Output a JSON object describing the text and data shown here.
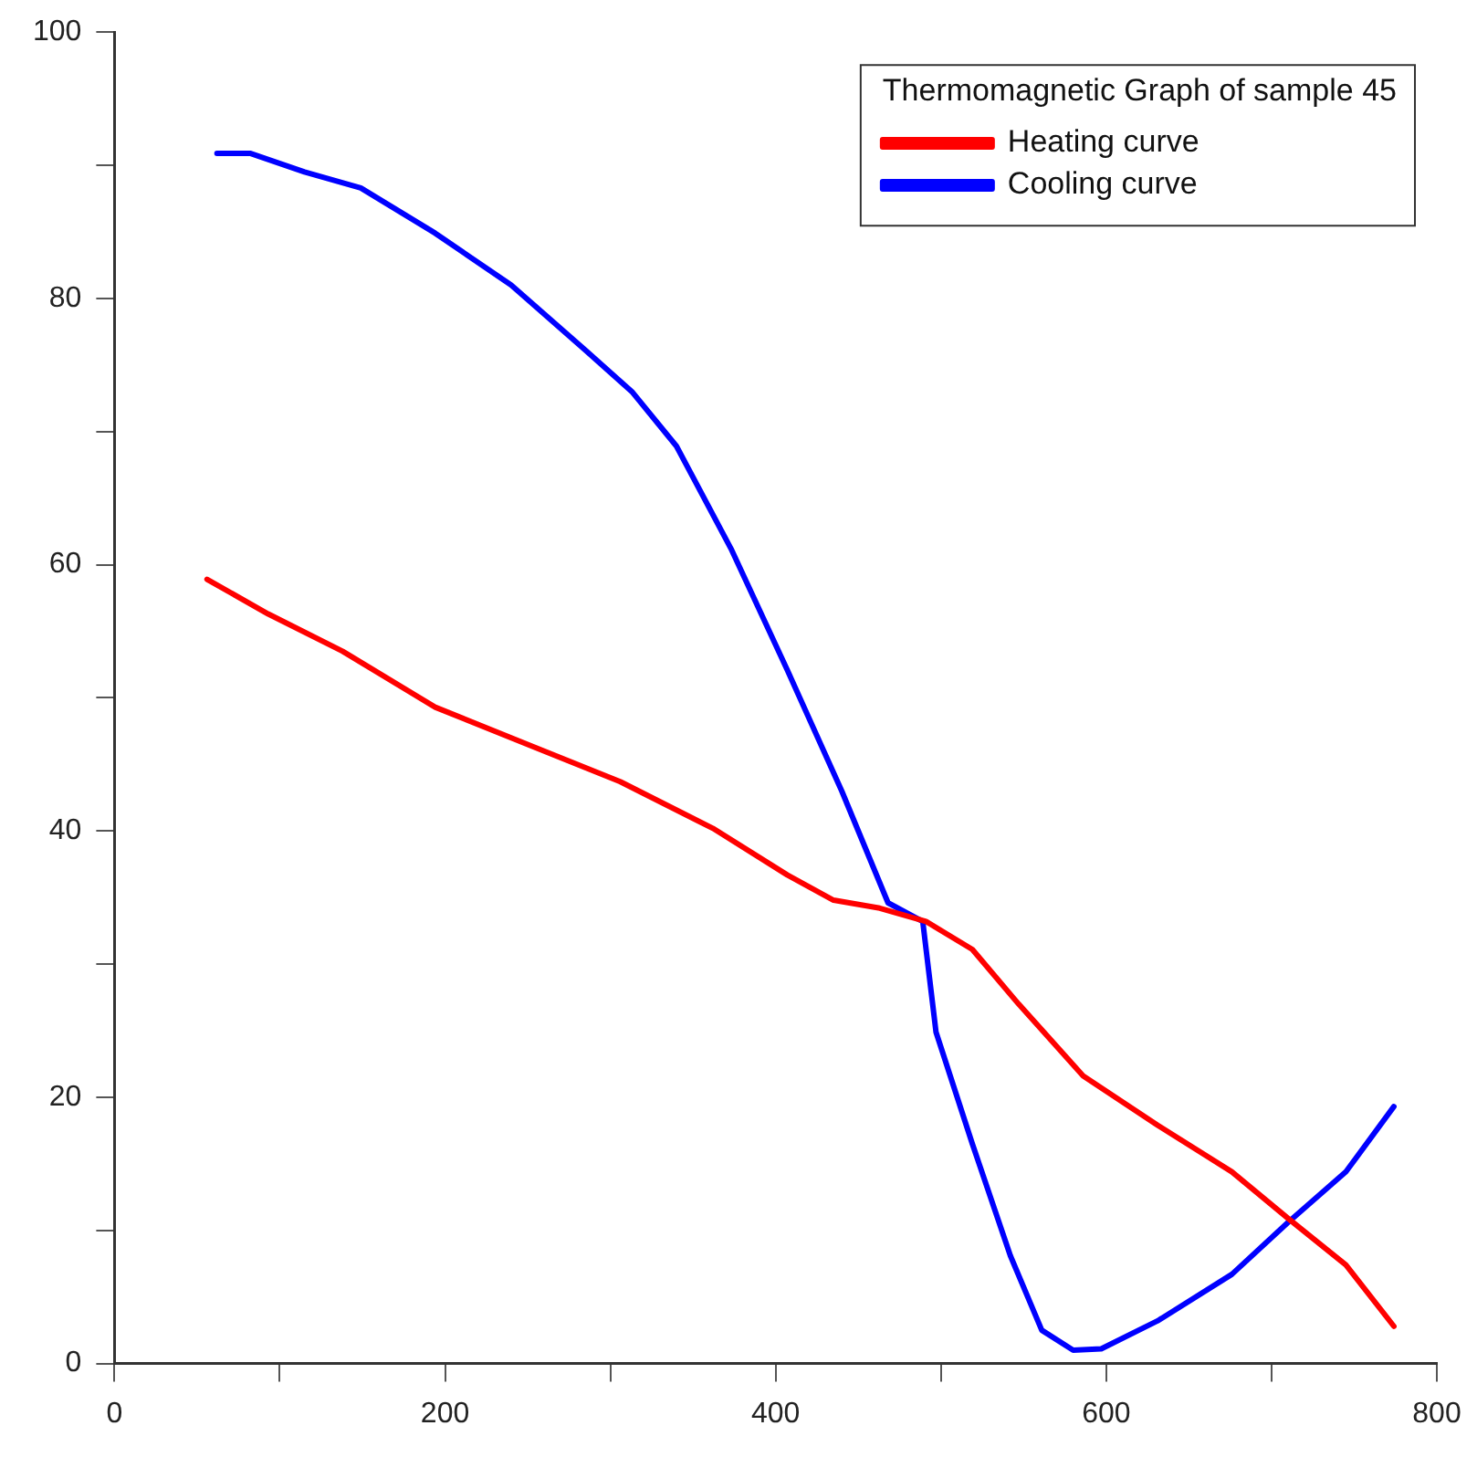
{
  "chart_data": {
    "type": "line",
    "legend_title": "Thermomagnetic Graph of sample 45",
    "legend": "top right",
    "grid": false,
    "marker": "none",
    "line_style": "solid",
    "xlim": [
      0,
      800
    ],
    "ylim": [
      0,
      100
    ],
    "xticks": [
      0,
      {
        "value": 100,
        "label": null
      },
      200,
      {
        "value": 300,
        "label": null
      },
      400,
      {
        "value": 500,
        "label": null
      },
      600,
      {
        "value": 700,
        "label": null
      },
      800
    ],
    "yticks": [
      0,
      {
        "value": 10,
        "label": null
      },
      20,
      {
        "value": 30,
        "label": null
      },
      40,
      {
        "value": 50,
        "label": null
      },
      60,
      {
        "value": 70,
        "label": null
      },
      80,
      {
        "value": 90,
        "label": null
      },
      100
    ],
    "series": [
      {
        "name": "Heating curve",
        "color": "#ff0000",
        "x": [
          56,
          93,
          138,
          194,
          250,
          306,
          362,
          407,
          435,
          463,
          491,
          519,
          547,
          586,
          631,
          676,
          710,
          745,
          774
        ],
        "values": [
          58.9,
          56.3,
          53.5,
          49.3,
          46.5,
          43.7,
          40.2,
          36.7,
          34.8,
          34.2,
          33.2,
          31.1,
          27,
          21.6,
          17.9,
          14.4,
          10.9,
          7.4,
          2.8
        ]
      },
      {
        "name": "Cooling curve",
        "color": "#0000ff",
        "x": [
          62,
          82,
          115,
          149,
          194,
          240,
          285,
          313,
          340,
          373,
          407,
          440,
          468,
          489,
          497,
          519,
          542,
          561,
          580,
          597,
          631,
          676,
          710,
          745,
          774
        ],
        "values": [
          90.9,
          90.9,
          89.5,
          88.3,
          84.9,
          81,
          76.1,
          73,
          68.9,
          61.2,
          52.1,
          43,
          34.6,
          33.2,
          24.9,
          16.5,
          8.1,
          2.5,
          1,
          1.1,
          3.2,
          6.7,
          10.6,
          14.4,
          19.3
        ]
      }
    ]
  }
}
